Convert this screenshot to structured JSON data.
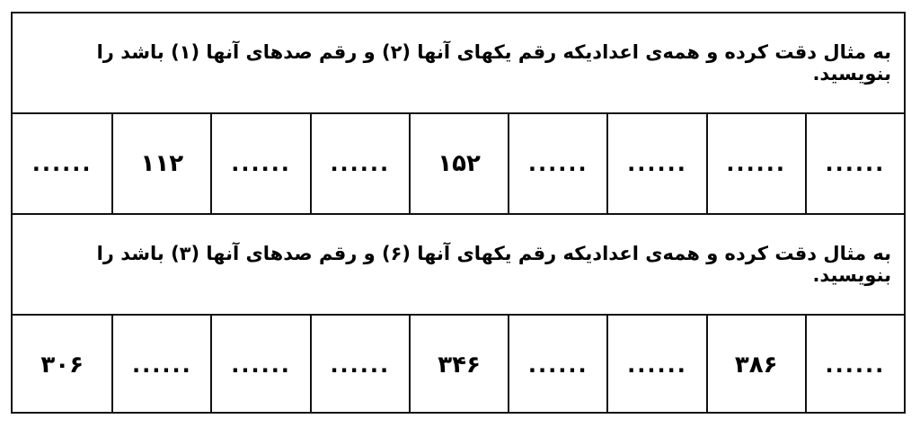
{
  "sections": [
    {
      "instruction": "به مثال دقت کرده و همه‌ی اعدادیکه رقم یکهای آنها (۲) و رقم صدهای آنها (۱) باشد را بنویسید.",
      "cells_rtl": [
        "......",
        "......",
        "......",
        "......",
        "۱۵۲",
        "......",
        "......",
        "۱۱۲",
        "......"
      ]
    },
    {
      "instruction": "به مثال دقت کرده و همه‌ی اعدادیکه رقم یکهای آنها (۶) و رقم صدهای آنها (۳) باشد را بنویسید.",
      "cells_rtl": [
        "......",
        "۳۸۶",
        "......",
        "......",
        "۳۴۶",
        "......",
        "......",
        "......",
        "۳۰۶"
      ]
    }
  ]
}
